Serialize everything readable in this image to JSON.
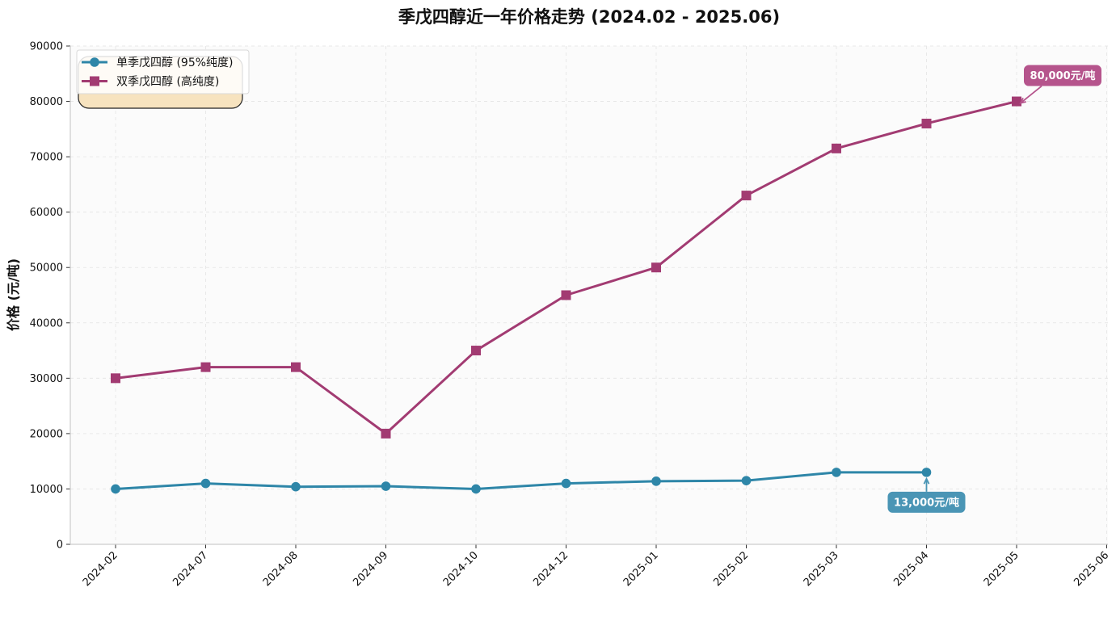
{
  "chart_data": {
    "type": "line",
    "title": "季戊四醇近一年价格走势 (2024.02 - 2025.06)",
    "ylabel": "价格 (元/吨)",
    "xlabel": "",
    "categories": [
      "2024-02",
      "2024-07",
      "2024-08",
      "2024-09",
      "2024-10",
      "2024-12",
      "2025-01",
      "2025-02",
      "2025-03",
      "2025-04",
      "2025-05",
      "2025-06"
    ],
    "ylim": [
      0,
      90000
    ],
    "yticks": [
      0,
      10000,
      20000,
      30000,
      40000,
      50000,
      60000,
      70000,
      80000,
      90000
    ],
    "grid": true,
    "legend_position": "top-left",
    "series": [
      {
        "name": "单季戊四醇 (95%纯度)",
        "color": "#2e86a8",
        "marker": "circle",
        "values": [
          10000,
          11000,
          10400,
          10500,
          10000,
          11000,
          11400,
          11500,
          13000,
          13000,
          null,
          null
        ]
      },
      {
        "name": "双季戊四醇 (高纯度)",
        "color": "#a23b72",
        "marker": "square",
        "values": [
          30000,
          32000,
          32000,
          20000,
          35000,
          45000,
          50000,
          63000,
          71500,
          76000,
          80000,
          null
        ]
      }
    ],
    "annotations": [
      {
        "text": "13,000元/吨",
        "series": 0,
        "category": "2025-04",
        "value": 13000,
        "color": "#4a95b5"
      },
      {
        "text": "80,000元/吨",
        "series": 1,
        "category": "2025-05",
        "value": 80000,
        "color": "#b5548c"
      }
    ],
    "note_box": {
      "fill": "#f7e3bf"
    }
  }
}
